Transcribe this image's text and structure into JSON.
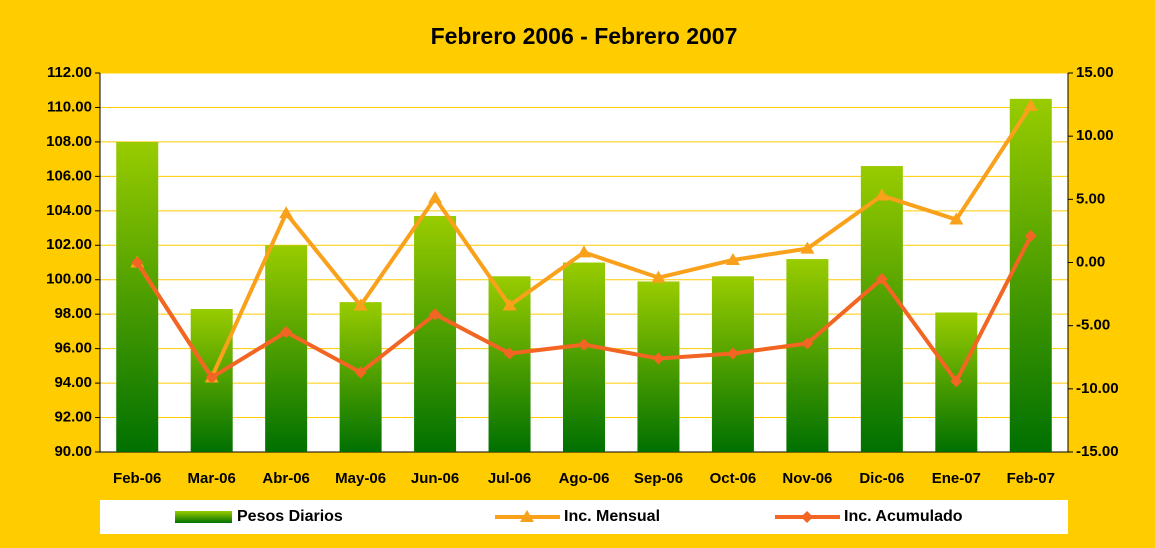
{
  "chart_data": {
    "type": "bar-line",
    "title": "Febrero 2006 - Febrero 2007",
    "categories": [
      "Feb-06",
      "Mar-06",
      "Abr-06",
      "May-06",
      "Jun-06",
      "Jul-06",
      "Ago-06",
      "Sep-06",
      "Oct-06",
      "Nov-06",
      "Dic-06",
      "Ene-07",
      "Feb-07"
    ],
    "series": [
      {
        "name": "Pesos Diarios",
        "type": "bar",
        "color": "#99cc00",
        "values": [
          108.0,
          98.3,
          102.0,
          98.7,
          103.7,
          100.2,
          101.0,
          99.9,
          100.2,
          101.2,
          106.6,
          98.1,
          110.5
        ]
      },
      {
        "name": "Inc. Mensual",
        "type": "line",
        "marker": "triangle",
        "axis": "y2",
        "color": "#f9a11b",
        "values": [
          0.0,
          -9.1,
          3.9,
          -3.4,
          5.1,
          -3.4,
          0.8,
          -1.2,
          0.2,
          1.1,
          5.3,
          3.4,
          12.4
        ]
      },
      {
        "name": "Inc. Acumulado",
        "type": "line",
        "marker": "diamond",
        "axis": "y2",
        "color": "#f26522",
        "values": [
          0.0,
          -9.1,
          -5.5,
          -8.7,
          -4.1,
          -7.2,
          -6.5,
          -7.6,
          -7.2,
          -6.4,
          -1.3,
          -9.4,
          2.1
        ]
      }
    ],
    "ylim": [
      90,
      112
    ],
    "yticks": [
      {
        "value": 90,
        "label": "90.00"
      },
      {
        "value": 92,
        "label": "92.00"
      },
      {
        "value": 94,
        "label": "94.00"
      },
      {
        "value": 96,
        "label": "96.00"
      },
      {
        "value": 98,
        "label": "98.00"
      },
      {
        "value": 100,
        "label": "100.00"
      },
      {
        "value": 102,
        "label": "102.00"
      },
      {
        "value": 104,
        "label": "104.00"
      },
      {
        "value": 106,
        "label": "106.00"
      },
      {
        "value": 108,
        "label": "108.00"
      },
      {
        "value": 110,
        "label": "110.00"
      },
      {
        "value": 112,
        "label": "112.00"
      }
    ],
    "y2lim": [
      -15,
      15
    ],
    "y2ticks": [
      {
        "value": -15,
        "label": "-15.00"
      },
      {
        "value": -10,
        "label": "-10.00"
      },
      {
        "value": -5,
        "label": "-5.00"
      },
      {
        "value": 0,
        "label": "0.00"
      },
      {
        "value": 5,
        "label": "5.00"
      },
      {
        "value": 10,
        "label": "10.00"
      },
      {
        "value": 15,
        "label": "15.00"
      }
    ],
    "grid": true,
    "legend": "bottom"
  }
}
